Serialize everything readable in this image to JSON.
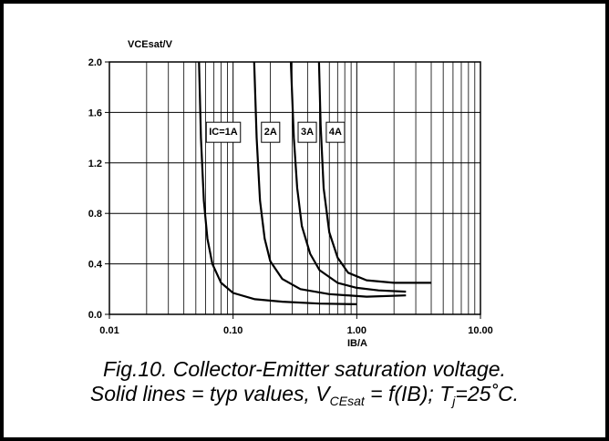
{
  "chart_data": {
    "type": "line",
    "ylabel": "VCEsat/V",
    "xlabel": "IB/A",
    "xlog": true,
    "grid": true,
    "color": "#000000",
    "xlim": [
      0.01,
      10
    ],
    "ylim": [
      0,
      2
    ],
    "xticks": [
      {
        "value": 0.01,
        "label": "0.01"
      },
      {
        "value": 0.1,
        "label": "0.10"
      },
      {
        "value": 1,
        "label": "1.00"
      },
      {
        "value": 10,
        "label": "10.00"
      }
    ],
    "yticks": [
      {
        "value": 0,
        "label": "0.0"
      },
      {
        "value": 0.4,
        "label": "0.4"
      },
      {
        "value": 0.8,
        "label": "0.8"
      },
      {
        "value": 1.2,
        "label": "1.2"
      },
      {
        "value": 1.6,
        "label": "1.6"
      },
      {
        "value": 2,
        "label": "2.0"
      }
    ],
    "series": [
      {
        "name": "IC=1A",
        "x": [
          0.053,
          0.055,
          0.058,
          0.062,
          0.068,
          0.08,
          0.1,
          0.15,
          0.25,
          0.5,
          1.0
        ],
        "values": [
          2.0,
          1.4,
          0.9,
          0.6,
          0.4,
          0.25,
          0.17,
          0.12,
          0.1,
          0.085,
          0.08
        ]
      },
      {
        "name": "2A",
        "x": [
          0.148,
          0.155,
          0.165,
          0.18,
          0.2,
          0.25,
          0.35,
          0.6,
          1.2,
          2.5
        ],
        "values": [
          2.0,
          1.4,
          0.9,
          0.6,
          0.42,
          0.28,
          0.2,
          0.16,
          0.14,
          0.15
        ]
      },
      {
        "name": "3A",
        "x": [
          0.293,
          0.31,
          0.33,
          0.36,
          0.42,
          0.5,
          0.7,
          1.0,
          1.5,
          2.5
        ],
        "values": [
          2.0,
          1.4,
          1.0,
          0.7,
          0.48,
          0.35,
          0.25,
          0.21,
          0.19,
          0.18
        ]
      },
      {
        "name": "4A",
        "x": [
          0.495,
          0.51,
          0.54,
          0.6,
          0.7,
          0.85,
          1.2,
          2.0,
          4.0
        ],
        "values": [
          2.0,
          1.5,
          1.0,
          0.65,
          0.45,
          0.33,
          0.27,
          0.25,
          0.25
        ]
      }
    ]
  },
  "caption": {
    "line1": "Fig.10.   Collector-Emitter saturation voltage.",
    "line2": [
      "Solid lines = typ values, V",
      "CEsat",
      " = f(IB); T",
      "j",
      "=25˚C."
    ]
  }
}
